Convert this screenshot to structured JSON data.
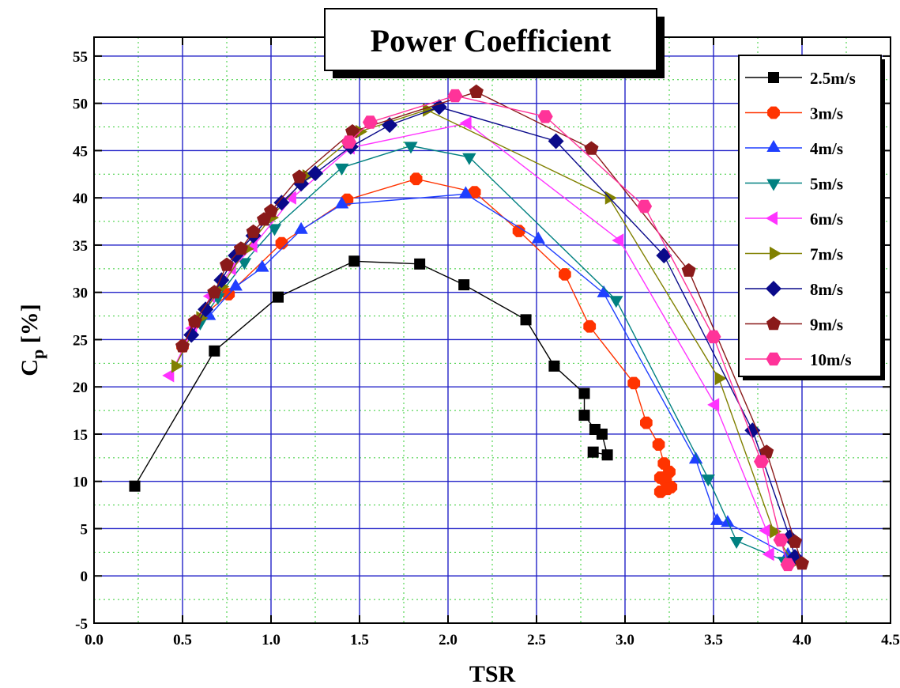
{
  "chart_data": {
    "type": "line",
    "title": "Power Coefficient",
    "xlabel": "TSR",
    "ylabel_main": "C",
    "ylabel_sub": "p",
    "ylabel_rest": " [%]",
    "xlim": [
      0.0,
      4.5
    ],
    "ylim": [
      -5,
      57
    ],
    "x_ticks": [
      "0.0",
      "0.5",
      "1.0",
      "1.5",
      "2.0",
      "2.5",
      "3.0",
      "3.5",
      "4.0",
      "4.5"
    ],
    "y_ticks": [
      "-5",
      "0",
      "5",
      "10",
      "15",
      "20",
      "25",
      "30",
      "35",
      "40",
      "45",
      "50",
      "55"
    ],
    "grid": true,
    "legend_position": "top-right",
    "series": [
      {
        "name": "2.5m/s",
        "color": "#000000",
        "marker": "square",
        "x": [
          0.23,
          0.68,
          1.04,
          1.47,
          1.84,
          2.09,
          2.44,
          2.6,
          2.77,
          2.77,
          2.83,
          2.87,
          2.9,
          2.82
        ],
        "y": [
          9.5,
          23.8,
          29.5,
          33.3,
          33.0,
          30.8,
          27.1,
          22.2,
          19.3,
          17.0,
          15.5,
          15.0,
          12.8,
          13.1
        ]
      },
      {
        "name": "3m/s",
        "color": "#ff3300",
        "marker": "circle",
        "x": [
          0.5,
          0.57,
          0.76,
          1.06,
          1.43,
          1.82,
          2.15,
          2.4,
          2.66,
          2.8,
          3.05,
          3.12,
          3.19,
          3.22,
          3.25,
          3.2,
          3.23,
          3.26,
          3.2,
          3.24
        ],
        "y": [
          24.3,
          26.8,
          29.8,
          35.2,
          39.8,
          42.0,
          40.6,
          36.5,
          31.9,
          26.4,
          20.4,
          16.2,
          13.9,
          11.9,
          11.0,
          10.4,
          10.0,
          9.4,
          8.9,
          9.2
        ]
      },
      {
        "name": "4m/s",
        "color": "#1f3fff",
        "marker": "triangle-up",
        "x": [
          0.55,
          0.65,
          0.8,
          0.95,
          1.17,
          1.4,
          2.1,
          2.51,
          2.88,
          3.4,
          3.52,
          3.58,
          3.92
        ],
        "y": [
          25.8,
          27.5,
          30.6,
          32.6,
          36.6,
          39.3,
          40.4,
          35.6,
          29.9,
          12.3,
          5.8,
          5.6,
          2.2
        ]
      },
      {
        "name": "5m/s",
        "color": "#008080",
        "marker": "triangle-down",
        "x": [
          0.6,
          0.7,
          0.85,
          1.02,
          1.4,
          1.79,
          2.12,
          2.95,
          3.47,
          3.63,
          3.9
        ],
        "y": [
          26.8,
          29.5,
          33.2,
          36.8,
          43.2,
          45.5,
          44.3,
          29.2,
          10.3,
          3.7,
          1.6
        ]
      },
      {
        "name": "6m/s",
        "color": "#ff33ff",
        "marker": "triangle-left",
        "x": [
          0.43,
          0.56,
          0.66,
          0.78,
          0.9,
          1.12,
          1.45,
          2.11,
          2.97,
          3.51,
          3.8,
          3.82
        ],
        "y": [
          21.2,
          26.2,
          29.6,
          32.5,
          34.9,
          40.0,
          45.3,
          47.9,
          35.5,
          18.1,
          4.8,
          2.3
        ]
      },
      {
        "name": "7m/s",
        "color": "#808000",
        "marker": "triangle-right",
        "x": [
          0.46,
          0.6,
          0.72,
          0.86,
          1.0,
          1.2,
          1.5,
          1.88,
          2.91,
          3.53,
          3.84,
          3.95
        ],
        "y": [
          22.2,
          27.3,
          30.6,
          34.6,
          37.9,
          42.3,
          47.0,
          49.3,
          40.0,
          20.9,
          4.7,
          1.4
        ]
      },
      {
        "name": "8m/s",
        "color": "#0a0a8a",
        "marker": "diamond",
        "x": [
          0.55,
          0.63,
          0.72,
          0.8,
          0.9,
          1.06,
          1.17,
          1.25,
          1.45,
          1.67,
          1.95,
          2.61,
          3.22,
          3.72,
          3.93,
          3.96
        ],
        "y": [
          25.5,
          28.2,
          31.3,
          33.9,
          36.0,
          39.5,
          41.5,
          42.6,
          45.4,
          47.7,
          49.6,
          46.0,
          33.9,
          15.4,
          4.1,
          2.0
        ]
      },
      {
        "name": "9m/s",
        "color": "#8a1a1a",
        "marker": "pentagon",
        "x": [
          0.5,
          0.57,
          0.68,
          0.75,
          0.83,
          0.9,
          0.96,
          1.0,
          1.16,
          1.46,
          2.16,
          2.81,
          3.36,
          3.8,
          3.96,
          4.0
        ],
        "y": [
          24.3,
          26.9,
          30.0,
          32.9,
          34.6,
          36.4,
          37.7,
          38.6,
          42.2,
          47.0,
          51.2,
          45.2,
          32.3,
          13.1,
          3.6,
          1.3
        ]
      },
      {
        "name": "10m/s",
        "color": "#ff3399",
        "marker": "hexagon",
        "x": [
          1.44,
          1.56,
          2.04,
          2.55,
          3.11,
          3.5,
          3.77,
          3.88,
          3.92
        ],
        "y": [
          45.9,
          48.0,
          50.8,
          48.6,
          39.1,
          25.3,
          12.1,
          3.8,
          1.2
        ]
      }
    ]
  }
}
